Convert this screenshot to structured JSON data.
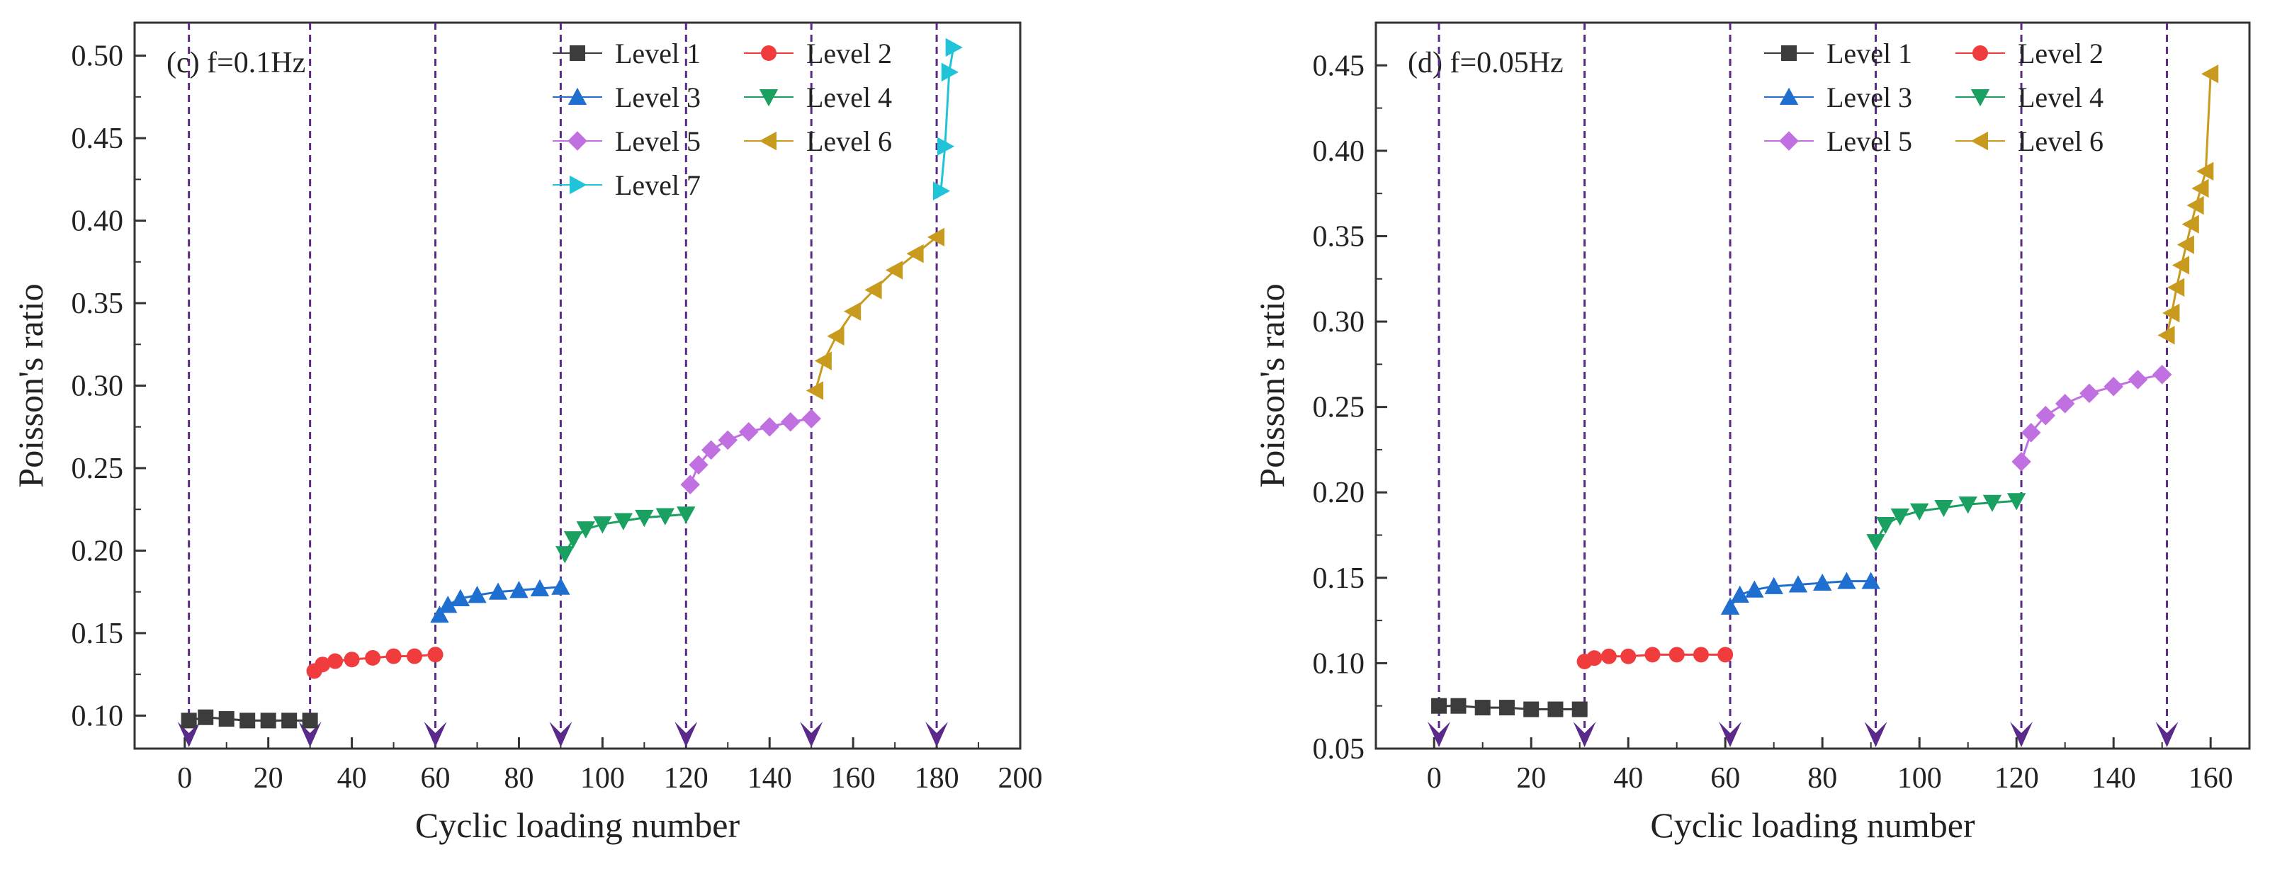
{
  "colors": {
    "level1": "#3c3c3c",
    "level2": "#f03c3c",
    "level3": "#1e6fd0",
    "level4": "#1aa060",
    "level5": "#c070e0",
    "level6": "#c89a1e",
    "level7": "#20c4d8",
    "marker_line": "#5a2a8a"
  },
  "chart_data": [
    {
      "type": "scatter",
      "panel_label": "(c) f=0.1Hz",
      "xlabel": "Cyclic loading number",
      "ylabel": "Poisson's ratio",
      "xlim": [
        -12,
        200
      ],
      "ylim": [
        0.08,
        0.52
      ],
      "xticks": [
        0,
        20,
        40,
        60,
        80,
        100,
        120,
        140,
        160,
        180,
        200
      ],
      "yticks": [
        0.1,
        0.15,
        0.2,
        0.25,
        0.3,
        0.35,
        0.4,
        0.45,
        0.5
      ],
      "boundaries": [
        1,
        30,
        60,
        90,
        120,
        150,
        180
      ],
      "legend_position": "top-right",
      "legend": [
        "Level 1",
        "Level 2",
        "Level 3",
        "Level 4",
        "Level 5",
        "Level 6",
        "Level 7"
      ],
      "series": [
        {
          "name": "Level 1",
          "marker": "square",
          "color_key": "level1",
          "x": [
            1,
            5,
            10,
            15,
            20,
            25,
            30
          ],
          "y": [
            0.097,
            0.099,
            0.098,
            0.097,
            0.097,
            0.097,
            0.097
          ]
        },
        {
          "name": "Level 2",
          "marker": "circle",
          "color_key": "level2",
          "x": [
            31,
            33,
            36,
            40,
            45,
            50,
            55,
            60
          ],
          "y": [
            0.127,
            0.131,
            0.133,
            0.134,
            0.135,
            0.136,
            0.136,
            0.137
          ]
        },
        {
          "name": "Level 3",
          "marker": "triangle-up",
          "color_key": "level3",
          "x": [
            61,
            63,
            66,
            70,
            75,
            80,
            85,
            90
          ],
          "y": [
            0.161,
            0.167,
            0.171,
            0.173,
            0.175,
            0.176,
            0.177,
            0.178
          ]
        },
        {
          "name": "Level 4",
          "marker": "triangle-down",
          "color_key": "level4",
          "x": [
            91,
            93,
            96,
            100,
            105,
            110,
            115,
            120
          ],
          "y": [
            0.198,
            0.207,
            0.213,
            0.216,
            0.218,
            0.22,
            0.221,
            0.222
          ]
        },
        {
          "name": "Level 5",
          "marker": "diamond",
          "color_key": "level5",
          "x": [
            121,
            123,
            126,
            130,
            135,
            140,
            145,
            150
          ],
          "y": [
            0.24,
            0.252,
            0.261,
            0.267,
            0.272,
            0.275,
            0.278,
            0.28
          ]
        },
        {
          "name": "Level 6",
          "marker": "triangle-left",
          "color_key": "level6",
          "x": [
            151,
            153,
            156,
            160,
            165,
            170,
            175,
            180
          ],
          "y": [
            0.297,
            0.315,
            0.33,
            0.345,
            0.358,
            0.37,
            0.38,
            0.39
          ]
        },
        {
          "name": "Level 7",
          "marker": "triangle-right",
          "color_key": "level7",
          "x": [
            181,
            182,
            183,
            184
          ],
          "y": [
            0.418,
            0.445,
            0.49,
            0.505
          ]
        }
      ]
    },
    {
      "type": "scatter",
      "panel_label": "(d) f=0.05Hz",
      "xlabel": "Cyclic loading number",
      "ylabel": "Poisson's ratio",
      "xlim": [
        -12,
        168
      ],
      "ylim": [
        0.05,
        0.475
      ],
      "xticks": [
        0,
        20,
        40,
        60,
        80,
        100,
        120,
        140,
        160
      ],
      "yticks": [
        0.05,
        0.1,
        0.15,
        0.2,
        0.25,
        0.3,
        0.35,
        0.4,
        0.45
      ],
      "boundaries": [
        1,
        31,
        61,
        91,
        121,
        151
      ],
      "legend_position": "top-right",
      "legend": [
        "Level 1",
        "Level 2",
        "Level 3",
        "Level 4",
        "Level 5",
        "Level 6"
      ],
      "series": [
        {
          "name": "Level 1",
          "marker": "square",
          "color_key": "level1",
          "x": [
            1,
            5,
            10,
            15,
            20,
            25,
            30
          ],
          "y": [
            0.075,
            0.075,
            0.074,
            0.074,
            0.073,
            0.073,
            0.073
          ]
        },
        {
          "name": "Level 2",
          "marker": "circle",
          "color_key": "level2",
          "x": [
            31,
            33,
            36,
            40,
            45,
            50,
            55,
            60
          ],
          "y": [
            0.101,
            0.103,
            0.104,
            0.104,
            0.105,
            0.105,
            0.105,
            0.105
          ]
        },
        {
          "name": "Level 3",
          "marker": "triangle-up",
          "color_key": "level3",
          "x": [
            61,
            63,
            66,
            70,
            75,
            80,
            85,
            90
          ],
          "y": [
            0.133,
            0.14,
            0.143,
            0.145,
            0.146,
            0.147,
            0.148,
            0.148
          ]
        },
        {
          "name": "Level 4",
          "marker": "triangle-down",
          "color_key": "level4",
          "x": [
            91,
            93,
            96,
            100,
            105,
            110,
            115,
            120
          ],
          "y": [
            0.171,
            0.181,
            0.186,
            0.189,
            0.191,
            0.193,
            0.194,
            0.195
          ]
        },
        {
          "name": "Level 5",
          "marker": "diamond",
          "color_key": "level5",
          "x": [
            121,
            123,
            126,
            130,
            135,
            140,
            145,
            150
          ],
          "y": [
            0.218,
            0.235,
            0.245,
            0.252,
            0.258,
            0.262,
            0.266,
            0.269
          ]
        },
        {
          "name": "Level 6",
          "marker": "triangle-left",
          "color_key": "level6",
          "x": [
            151,
            152,
            153,
            154,
            155,
            156,
            157,
            158,
            159,
            160
          ],
          "y": [
            0.292,
            0.305,
            0.32,
            0.333,
            0.345,
            0.357,
            0.368,
            0.378,
            0.388,
            0.445
          ]
        }
      ]
    }
  ]
}
